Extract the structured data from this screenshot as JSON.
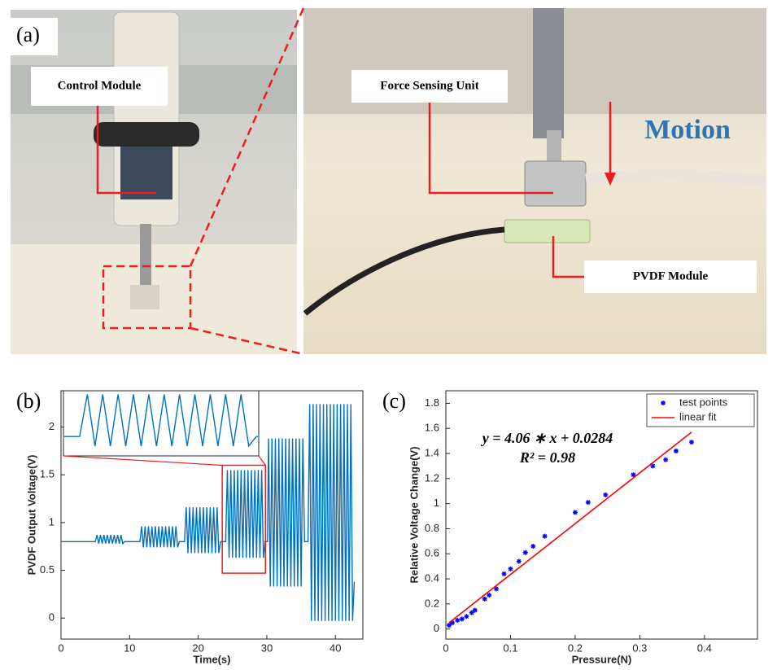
{
  "photo": {
    "label": "(a)",
    "annotations": [
      "Control Module",
      "Force Sensing Unit",
      "Motion",
      "PVDF Module"
    ]
  },
  "chart_data": [
    {
      "type": "line",
      "label": "(b)",
      "x_label": "Time(s)",
      "y_label": "PVDF Output Voltage(V)",
      "xlim": [
        0,
        44
      ],
      "ylim": [
        -0.22,
        2.38
      ],
      "xticks": [
        0,
        10,
        20,
        30,
        40
      ],
      "yticks": [
        0,
        0.5,
        1,
        1.5,
        2
      ],
      "zoom_box": {
        "xlim": [
          23.5,
          29.8
        ],
        "ylim": [
          0.47,
          1.6
        ]
      },
      "x": [
        0,
        5,
        5.25,
        5.5,
        5.75,
        6,
        6.25,
        6.5,
        6.75,
        7,
        7.25,
        7.5,
        7.75,
        8,
        8.25,
        8.5,
        8.75,
        9,
        9.25,
        11.5,
        11.75,
        12,
        12.25,
        12.5,
        12.75,
        13,
        13.25,
        13.5,
        13.75,
        14,
        14.25,
        14.5,
        14.75,
        15,
        15.25,
        15.5,
        15.75,
        16,
        16.25,
        16.5,
        16.75,
        17,
        17.25,
        18,
        18.25,
        18.5,
        18.75,
        19,
        19.25,
        19.5,
        19.75,
        20,
        20.25,
        20.5,
        20.75,
        21,
        21.25,
        21.5,
        21.75,
        22,
        22.25,
        22.5,
        22.75,
        23,
        23.25,
        24,
        24.25,
        24.5,
        24.75,
        25,
        25.25,
        25.5,
        25.75,
        26,
        26.25,
        26.5,
        26.75,
        27,
        27.25,
        27.5,
        27.75,
        28,
        28.25,
        28.5,
        28.75,
        29,
        29.25,
        29.5,
        29.75,
        30.1,
        30.25,
        30.5,
        30.75,
        31,
        31.25,
        31.5,
        31.75,
        32,
        32.25,
        32.5,
        32.75,
        33,
        33.25,
        33.5,
        33.75,
        34,
        34.25,
        34.5,
        34.75,
        35,
        35.25,
        35.5,
        36,
        36.25,
        36.5,
        36.75,
        37,
        37.25,
        37.5,
        37.75,
        38,
        38.25,
        38.5,
        38.75,
        39,
        39.25,
        39.5,
        39.75,
        40,
        40.25,
        40.5,
        40.75,
        41,
        41.25,
        41.5,
        41.75,
        42,
        42.25,
        42.5,
        42.75
      ],
      "series": [
        {
          "color": "#0072bd",
          "values": [
            0.8,
            0.8,
            0.87,
            0.78,
            0.87,
            0.78,
            0.87,
            0.78,
            0.87,
            0.78,
            0.87,
            0.78,
            0.87,
            0.78,
            0.87,
            0.78,
            0.87,
            0.78,
            0.8,
            0.8,
            0.96,
            0.74,
            0.96,
            0.74,
            0.96,
            0.74,
            0.96,
            0.74,
            0.96,
            0.74,
            0.96,
            0.74,
            0.96,
            0.74,
            0.96,
            0.74,
            0.96,
            0.74,
            0.96,
            0.74,
            0.96,
            0.74,
            0.8,
            0.8,
            1.16,
            0.68,
            1.16,
            0.68,
            1.16,
            0.68,
            1.16,
            0.68,
            1.16,
            0.68,
            1.16,
            0.68,
            1.16,
            0.68,
            1.16,
            0.68,
            1.16,
            0.68,
            1.16,
            0.68,
            0.8,
            0.8,
            1.55,
            0.63,
            1.55,
            0.63,
            1.55,
            0.63,
            1.55,
            0.63,
            1.55,
            0.63,
            1.55,
            0.63,
            1.55,
            0.63,
            1.55,
            0.63,
            1.55,
            0.63,
            1.55,
            0.63,
            1.55,
            0.63,
            0.8,
            0.8,
            1.88,
            0.33,
            1.88,
            0.33,
            1.88,
            0.33,
            1.88,
            0.33,
            1.88,
            0.33,
            1.88,
            0.33,
            1.88,
            0.33,
            1.88,
            0.33,
            1.88,
            0.33,
            1.88,
            0.33,
            1.88,
            0.8,
            0.8,
            2.24,
            -0.03,
            2.24,
            -0.03,
            2.24,
            -0.03,
            2.24,
            -0.03,
            2.24,
            -0.03,
            2.24,
            -0.03,
            2.24,
            -0.03,
            2.24,
            -0.03,
            2.24,
            -0.03,
            2.24,
            -0.03,
            2.24,
            -0.03,
            2.24,
            -0.03,
            2.24,
            -0.03,
            0.38
          ]
        }
      ]
    },
    {
      "type": "scatter",
      "label": "(c)",
      "x_label": "Pressure(N)",
      "y_label": "Relative Voltage Change(V)",
      "xlim": [
        0,
        0.482
      ],
      "ylim": [
        -0.08,
        1.9
      ],
      "xticks": [
        0,
        0.1,
        0.2,
        0.3,
        0.4
      ],
      "yticks": [
        0,
        0.2,
        0.4,
        0.6,
        0.8,
        1,
        1.2,
        1.4,
        1.6,
        1.8
      ],
      "annotations": [
        "y = 4.06 ∗ x + 0.0284",
        "R² = 0.98"
      ],
      "legend": "upper right",
      "series": [
        {
          "name": "test points",
          "type": "scatter",
          "color": "#0000ff",
          "x": [
            0.005,
            0.01,
            0.018,
            0.025,
            0.032,
            0.04,
            0.045,
            0.06,
            0.067,
            0.078,
            0.09,
            0.1,
            0.113,
            0.123,
            0.135,
            0.153,
            0.2,
            0.22,
            0.247,
            0.29,
            0.32,
            0.34,
            0.356,
            0.38
          ],
          "values": [
            0.03,
            0.05,
            0.07,
            0.08,
            0.1,
            0.13,
            0.15,
            0.24,
            0.27,
            0.32,
            0.44,
            0.48,
            0.54,
            0.61,
            0.66,
            0.74,
            0.93,
            1.01,
            1.07,
            1.23,
            1.3,
            1.35,
            1.42,
            1.49
          ]
        },
        {
          "name": "linear fit",
          "type": "line",
          "color": "#ff0000",
          "x": [
            0.005,
            0.38
          ],
          "values": [
            0.05,
            1.57
          ]
        }
      ]
    }
  ]
}
